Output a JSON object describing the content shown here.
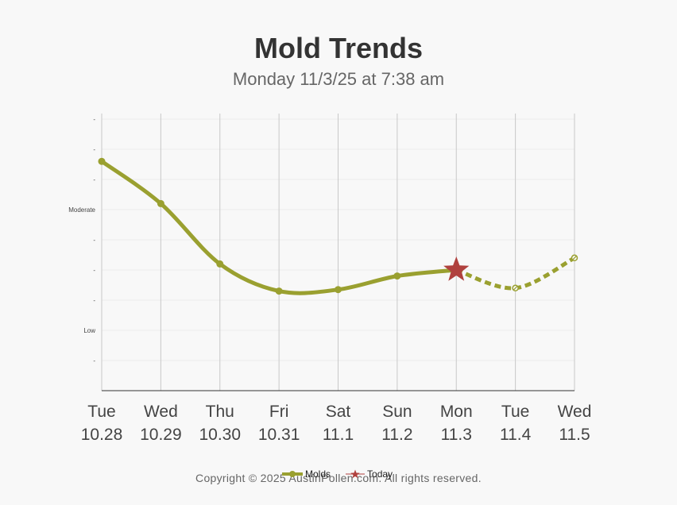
{
  "title": "Mold Trends",
  "subtitle": "Monday 11/3/25 at 7:38 am",
  "copyright": "Copyright © 2025 AustinPollen.com.  All rights reserved.",
  "colors": {
    "series": "#9aa030",
    "today": "#b0413e",
    "grid": "#c8c8c8",
    "minor_grid": "#ececec",
    "axis": "#333333"
  },
  "legend": [
    {
      "label": "Molds",
      "icon": "line-dot-icon"
    },
    {
      "label": "Today",
      "icon": "star-icon"
    }
  ],
  "chart_data": {
    "type": "line",
    "title": "Mold Trends",
    "subtitle": "Monday 11/3/25 at 7:38 am",
    "categories": [
      {
        "day": "Tue",
        "date": "10.28"
      },
      {
        "day": "Wed",
        "date": "10.29"
      },
      {
        "day": "Thu",
        "date": "10.30"
      },
      {
        "day": "Fri",
        "date": "10.31"
      },
      {
        "day": "Sat",
        "date": "11.1"
      },
      {
        "day": "Sun",
        "date": "11.2"
      },
      {
        "day": "Mon",
        "date": "11.3"
      },
      {
        "day": "Tue",
        "date": "11.4"
      },
      {
        "day": "Wed",
        "date": "11.5"
      }
    ],
    "y_tick_labels": [
      "-",
      "Low",
      "-",
      "-",
      "-",
      "Moderate",
      "-",
      "-",
      "-"
    ],
    "ylim": [
      0,
      9
    ],
    "series": [
      {
        "name": "Molds",
        "values": [
          7.6,
          6.2,
          4.2,
          3.3,
          3.35,
          3.8,
          4.0,
          3.4,
          4.4
        ],
        "forecast_from_index": 6
      }
    ],
    "today_index": 6,
    "grid": true,
    "legend_position": "bottom-center"
  }
}
